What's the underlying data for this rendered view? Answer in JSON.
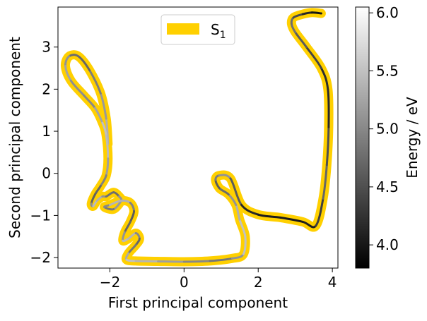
{
  "chart_data": {
    "type": "line",
    "xlabel": "First principal component",
    "ylabel": "Second principal component",
    "xlim": [
      -3.4,
      4.15
    ],
    "ylim": [
      -2.25,
      3.95
    ],
    "xticks": [
      -2,
      0,
      2,
      4
    ],
    "yticks": [
      -2,
      -1,
      0,
      1,
      2,
      3
    ],
    "grid": false,
    "legend": {
      "position": "upper center",
      "entries": [
        {
          "label": "S",
          "subscript": "1",
          "color": "#FFD000"
        }
      ]
    },
    "colorbar": {
      "label": "Energy / eV",
      "range": [
        3.8,
        6.05
      ],
      "ticks": [
        4.0,
        4.5,
        5.0,
        5.5,
        6.0
      ],
      "tick_labels": [
        "4.0",
        "4.5",
        "5.0",
        "5.5",
        "6.0"
      ],
      "colormap": "gray"
    },
    "series": [
      {
        "name": "S1",
        "color": "#FFD000",
        "x": [
          -2.05,
          -2.1,
          -2.25,
          -2.55,
          -2.85,
          -3.1,
          -3.2,
          -3.05,
          -2.7,
          -2.4,
          -2.2,
          -2.1,
          -2.05,
          -2.1,
          -2.25,
          -2.4,
          -2.5,
          -2.45,
          -2.35,
          -2.2,
          -2.1,
          -1.9,
          -1.75,
          -1.7,
          -1.9,
          -2.15,
          -2.0,
          -1.7,
          -1.45,
          -1.35,
          -1.45,
          -1.6,
          -1.65,
          -1.5,
          -1.3,
          -1.2,
          -1.3,
          -1.5,
          -1.55,
          -1.3,
          -0.7,
          0.0,
          0.7,
          1.3,
          1.6,
          1.65,
          1.5,
          1.4,
          1.2,
          0.95,
          0.85,
          0.95,
          1.25,
          1.55,
          2.0,
          2.6,
          3.2,
          3.55,
          3.75,
          3.85,
          3.9,
          3.88,
          3.7,
          3.3,
          3.0,
          2.9,
          2.95,
          3.2,
          3.45,
          3.7
        ],
        "y": [
          0.7,
          1.3,
          1.9,
          2.45,
          2.78,
          2.78,
          2.55,
          2.2,
          1.85,
          1.55,
          1.2,
          0.9,
          0.35,
          -0.05,
          -0.3,
          -0.5,
          -0.72,
          -0.78,
          -0.65,
          -0.55,
          -0.55,
          -0.45,
          -0.55,
          -0.65,
          -0.85,
          -0.8,
          -0.75,
          -0.65,
          -0.7,
          -0.9,
          -1.15,
          -1.4,
          -1.6,
          -1.55,
          -1.42,
          -1.55,
          -1.7,
          -1.9,
          -2.05,
          -2.08,
          -2.09,
          -2.1,
          -2.08,
          -2.02,
          -1.92,
          -1.5,
          -1.1,
          -0.75,
          -0.5,
          -0.35,
          -0.15,
          -0.05,
          -0.12,
          -0.75,
          -0.98,
          -1.05,
          -1.15,
          -1.25,
          -0.6,
          0.2,
          1.1,
          2.0,
          2.5,
          3.0,
          3.35,
          3.55,
          3.7,
          3.78,
          3.82,
          3.8
        ],
        "energy": [
          5.4,
          5.3,
          5.0,
          4.8,
          4.6,
          4.9,
          5.3,
          5.2,
          4.9,
          5.1,
          5.4,
          5.6,
          5.3,
          5.1,
          4.8,
          4.6,
          4.7,
          5.4,
          5.5,
          5.2,
          5.0,
          4.6,
          4.9,
          5.3,
          5.0,
          4.7,
          5.3,
          5.5,
          5.2,
          4.7,
          4.5,
          4.9,
          5.3,
          5.6,
          5.2,
          4.8,
          4.6,
          5.1,
          5.5,
          5.5,
          5.3,
          5.1,
          4.9,
          4.8,
          5.4,
          5.6,
          5.4,
          5.3,
          4.9,
          4.6,
          4.6,
          5.2,
          5.0,
          4.2,
          4.1,
          4.0,
          4.05,
          4.1,
          4.6,
          4.8,
          4.2,
          4.1,
          4.3,
          4.5,
          4.7,
          4.9,
          4.6,
          4.3,
          4.0,
          4.0
        ]
      }
    ]
  }
}
